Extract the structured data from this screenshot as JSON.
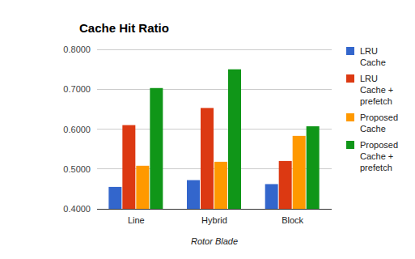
{
  "chart_data": {
    "type": "bar",
    "title": "Cache Hit Ratio",
    "x_label": "Rotor Blade",
    "categories": [
      "Line",
      "Hybrid",
      "Block"
    ],
    "series": [
      {
        "name": "LRU Cache",
        "color": "#3366cc",
        "values": [
          0.455,
          0.472,
          0.462
        ]
      },
      {
        "name": "LRU Cache + prefetch",
        "color": "#dc3912",
        "values": [
          0.61,
          0.653,
          0.52
        ]
      },
      {
        "name": "Proposed Cache",
        "color": "#ff9900",
        "values": [
          0.508,
          0.518,
          0.583
        ]
      },
      {
        "name": "Proposed Cache + prefetch",
        "color": "#109618",
        "values": [
          0.703,
          0.75,
          0.607
        ]
      }
    ],
    "ylim": [
      0.4,
      0.8
    ],
    "yticks": [
      {
        "value": 0.4,
        "label": "0.4000"
      },
      {
        "value": 0.5,
        "label": "0.5000"
      },
      {
        "value": 0.6,
        "label": "0.6000"
      },
      {
        "value": 0.7,
        "label": "0.7000"
      },
      {
        "value": 0.8,
        "label": "0.8000"
      }
    ],
    "grid": true,
    "legend": "right"
  }
}
